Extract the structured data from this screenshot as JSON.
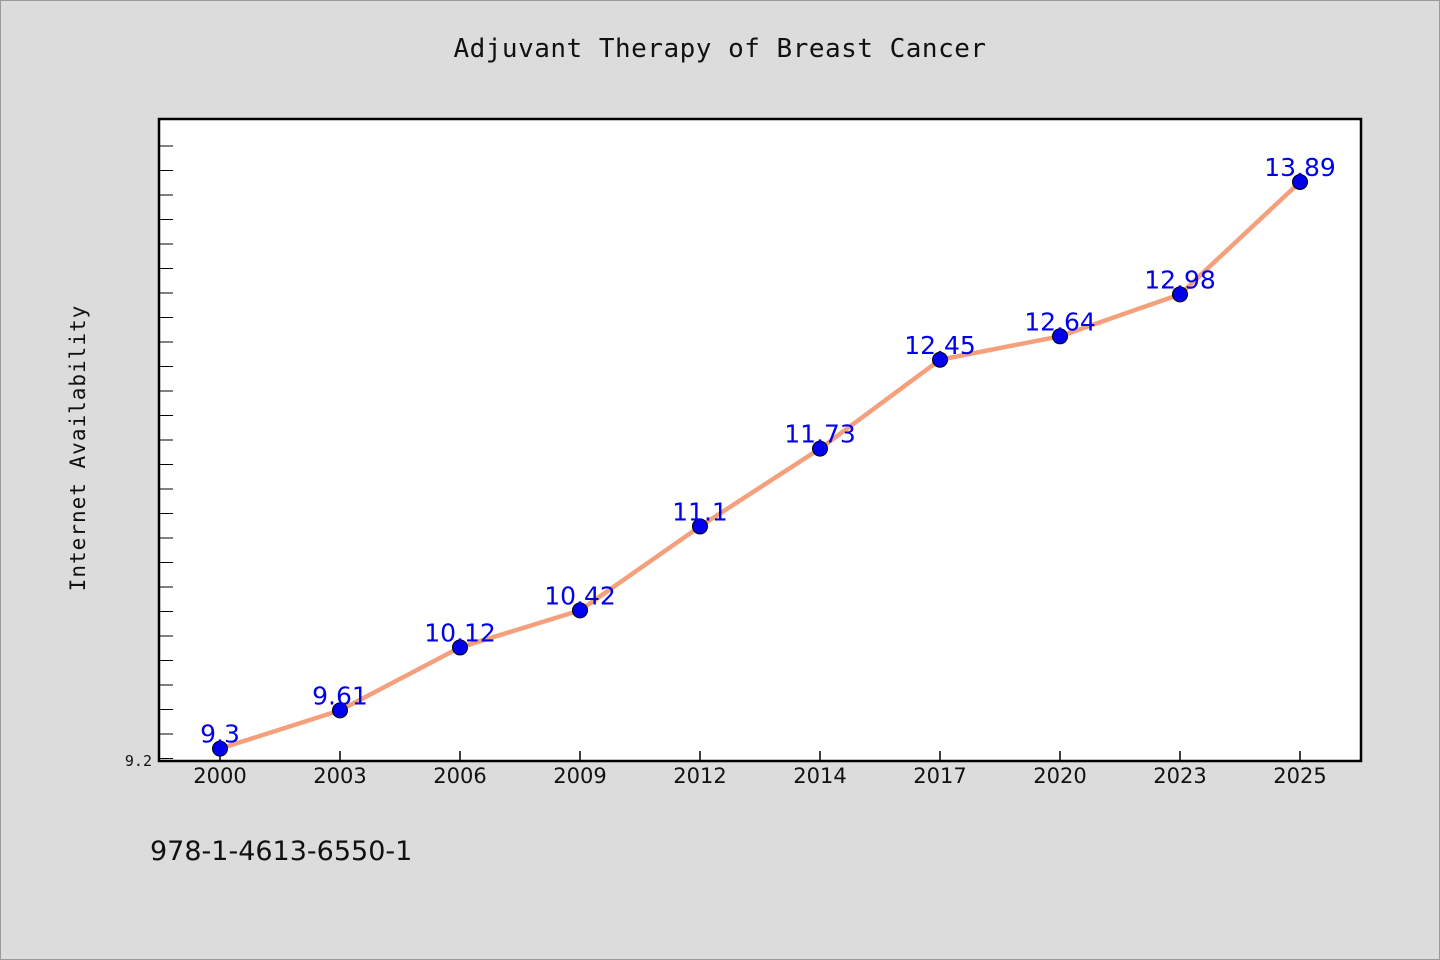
{
  "footer": {
    "isbn": "978-1-4613-6550-1"
  },
  "chart_data": {
    "type": "line",
    "title": "Adjuvant Therapy of Breast Cancer",
    "xlabel": "",
    "ylabel": "Internet Availability",
    "categories": [
      "2000",
      "2003",
      "2006",
      "2009",
      "2012",
      "2014",
      "2017",
      "2020",
      "2023",
      "2025"
    ],
    "series": [
      {
        "values": [
          9.3,
          9.61,
          10.12,
          10.42,
          11.1,
          11.73,
          12.45,
          12.64,
          12.98,
          13.89
        ],
        "data_labels": [
          "9.3",
          "9.61",
          "10.12",
          "10.42",
          "11.1",
          "11.73",
          "12.45",
          "12.64",
          "12.98",
          "13.89"
        ]
      }
    ],
    "y_tick_labels": [
      "9.2"
    ],
    "ylim": [
      9.2,
      14.4
    ],
    "grid": false,
    "legend": "none",
    "colors": {
      "line": "#f4a07c",
      "marker": "#0000ee",
      "label": "#0000ee",
      "plot_background": "#ffffff",
      "page_background": "#dcdcdc"
    }
  }
}
